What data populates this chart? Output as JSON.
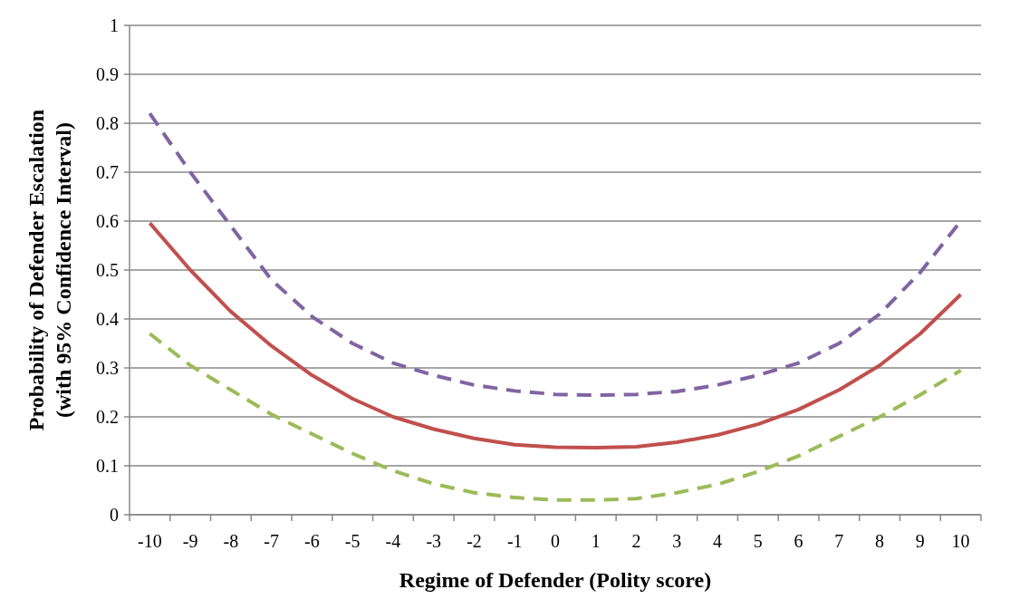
{
  "chart_data": {
    "type": "line",
    "xlabel": "Regime of Defender (Polity score)",
    "ylabel": "Probability of Defender Escalation\n(with 95% Confidence Interval)",
    "categories": [
      "-10",
      "-9",
      "-8",
      "-7",
      "-6",
      "-5",
      "-4",
      "-3",
      "-2",
      "-1",
      "0",
      "1",
      "2",
      "3",
      "4",
      "5",
      "6",
      "7",
      "8",
      "9",
      "10"
    ],
    "series": [
      {
        "color": "#8064a2",
        "line_style": "dashed",
        "values": [
          0.82,
          0.7,
          0.59,
          0.48,
          0.405,
          0.35,
          0.31,
          0.285,
          0.265,
          0.253,
          0.246,
          0.244,
          0.246,
          0.252,
          0.265,
          0.285,
          0.31,
          0.35,
          0.41,
          0.495,
          0.6
        ]
      },
      {
        "color": "#c0504d",
        "line_style": "solid",
        "values": [
          0.596,
          0.5,
          0.415,
          0.345,
          0.285,
          0.237,
          0.2,
          0.175,
          0.156,
          0.143,
          0.138,
          0.137,
          0.139,
          0.148,
          0.163,
          0.185,
          0.215,
          0.255,
          0.305,
          0.37,
          0.45
        ]
      },
      {
        "color": "#9bbb59",
        "line_style": "dashed",
        "values": [
          0.37,
          0.305,
          0.255,
          0.205,
          0.165,
          0.125,
          0.09,
          0.063,
          0.045,
          0.035,
          0.03,
          0.03,
          0.033,
          0.045,
          0.062,
          0.088,
          0.12,
          0.16,
          0.2,
          0.245,
          0.295
        ]
      }
    ],
    "ylim": [
      0,
      1
    ],
    "yticks": [
      0,
      0.1,
      0.2,
      0.3,
      0.4,
      0.5,
      0.6,
      0.7,
      0.8,
      0.9,
      1
    ],
    "grid": "y"
  }
}
